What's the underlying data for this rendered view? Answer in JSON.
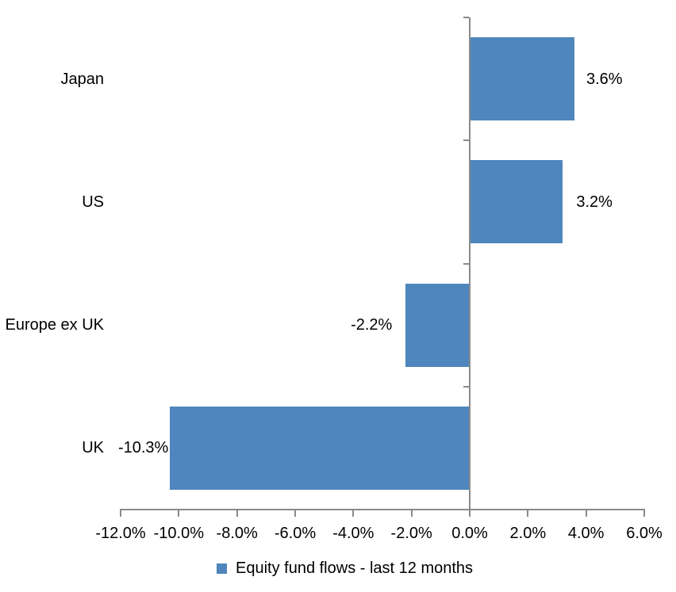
{
  "chart_data": {
    "type": "bar",
    "orientation": "horizontal",
    "title": "",
    "categories": [
      "Japan",
      "US",
      "Europe ex UK",
      "UK"
    ],
    "series": [
      {
        "name": "Equity fund flows - last 12 months",
        "values": [
          3.6,
          3.2,
          -2.2,
          -10.3
        ]
      }
    ],
    "value_labels": [
      "3.6%",
      "3.2%",
      "-2.2%",
      "-10.3%"
    ],
    "xlim": [
      -12,
      6
    ],
    "x_tick_step": 2,
    "x_ticks": [
      -12,
      -10,
      -8,
      -6,
      -4,
      -2,
      0,
      2,
      4,
      6
    ],
    "x_tick_labels": [
      "-12.0%",
      "-10.0%",
      "-8.0%",
      "-6.0%",
      "-4.0%",
      "-2.0%",
      "0.0%",
      "2.0%",
      "4.0%",
      "6.0%"
    ],
    "grid": false,
    "legend": {
      "position": "bottom",
      "label": "Equity fund flows - last 12 months"
    },
    "colors": {
      "bar": "#4E86BD",
      "axis": "#8A8A8A",
      "text": "#000000"
    }
  }
}
